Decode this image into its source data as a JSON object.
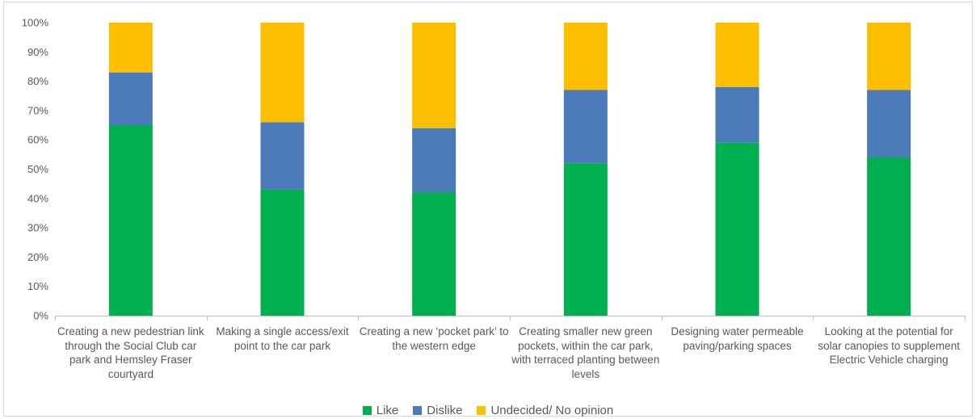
{
  "chart_data": {
    "type": "bar",
    "stacked": true,
    "percent": true,
    "categories": [
      "Creating a new pedestrian link through the Social Club car park and Hemsley Fraser courtyard",
      "Making a single access/exit point to the car park",
      "Creating a new ‘pocket park’ to the western edge",
      "Creating smaller new green pockets, within the car park, with terraced planting between levels",
      "Designing water permeable paving/parking spaces",
      "Looking at the potential for solar canopies to supplement Electric Vehicle charging"
    ],
    "series": [
      {
        "name": "Like",
        "color": "#00b050",
        "values": [
          65,
          43,
          42,
          52,
          59,
          54
        ]
      },
      {
        "name": "Dislike",
        "color": "#4a7ab8",
        "values": [
          18,
          23,
          22,
          25,
          19,
          23
        ]
      },
      {
        "name": "Undecided/ No opinion",
        "color": "#fbbf00",
        "values": [
          17,
          34,
          36,
          23,
          22,
          23
        ]
      }
    ],
    "yticks": [
      "0%",
      "10%",
      "20%",
      "30%",
      "40%",
      "50%",
      "60%",
      "70%",
      "80%",
      "90%",
      "100%"
    ],
    "ylim": [
      0,
      100
    ],
    "grid": false,
    "legend_position": "bottom"
  }
}
